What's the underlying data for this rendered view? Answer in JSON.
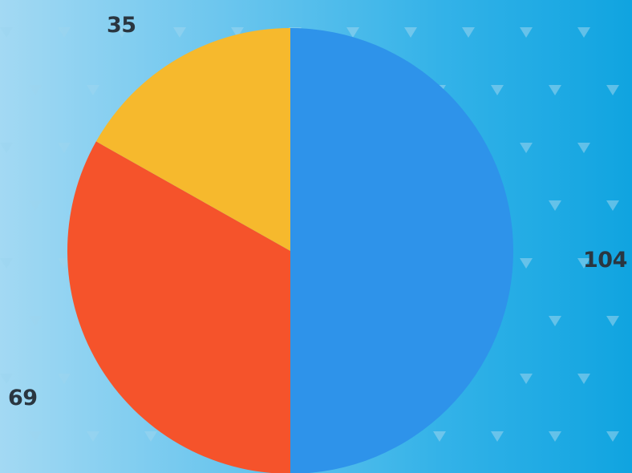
{
  "background_colors": [
    "#a3d9f3",
    "#6cc6ee",
    "#33b2e8",
    "#10a4e0"
  ],
  "pattern_icon": "triangle-down-icon",
  "pattern_color": "#9dd6ef",
  "chart_data": {
    "type": "pie",
    "title": "",
    "start_angle_deg": 0,
    "direction": "clockwise",
    "legend": "none",
    "slices": [
      {
        "value": 104,
        "label": "104",
        "color": "#2e93ea"
      },
      {
        "value": 69,
        "label": "69",
        "color": "#f5532b"
      },
      {
        "value": 35,
        "label": "35",
        "color": "#f6b92d"
      }
    ]
  }
}
